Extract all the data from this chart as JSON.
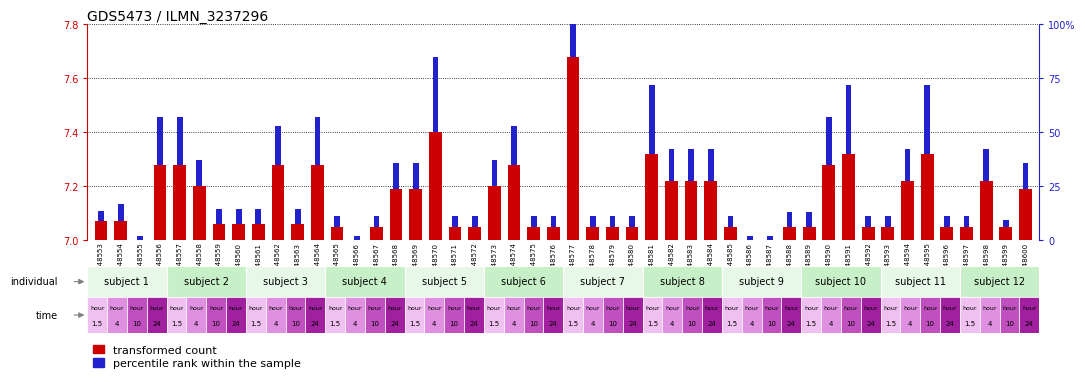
{
  "title": "GDS5473 / ILMN_3237296",
  "gsm_ids": [
    "GSM1348553",
    "GSM1348554",
    "GSM1348555",
    "GSM1348556",
    "GSM1348557",
    "GSM1348558",
    "GSM1348559",
    "GSM1348560",
    "GSM1348561",
    "GSM1348562",
    "GSM1348563",
    "GSM1348564",
    "GSM1348565",
    "GSM1348566",
    "GSM1348567",
    "GSM1348568",
    "GSM1348569",
    "GSM1348570",
    "GSM1348571",
    "GSM1348572",
    "GSM1348573",
    "GSM1348574",
    "GSM1348575",
    "GSM1348576",
    "GSM1348577",
    "GSM1348578",
    "GSM1348579",
    "GSM1348580",
    "GSM1348581",
    "GSM1348582",
    "GSM1348583",
    "GSM1348584",
    "GSM1348585",
    "GSM1348586",
    "GSM1348587",
    "GSM1348588",
    "GSM1348589",
    "GSM1348590",
    "GSM1348591",
    "GSM1348592",
    "GSM1348593",
    "GSM1348594",
    "GSM1348595",
    "GSM1348596",
    "GSM1348597",
    "GSM1348598",
    "GSM1348599",
    "GSM1348600"
  ],
  "red_values": [
    7.07,
    7.07,
    7.0,
    7.28,
    7.28,
    7.2,
    7.06,
    7.06,
    7.06,
    7.28,
    7.06,
    7.28,
    7.05,
    7.0,
    7.05,
    7.19,
    7.19,
    7.4,
    7.05,
    7.05,
    7.2,
    7.28,
    7.05,
    7.05,
    7.68,
    7.05,
    7.05,
    7.05,
    7.32,
    7.22,
    7.22,
    7.22,
    7.05,
    7.0,
    7.0,
    7.05,
    7.05,
    7.28,
    7.32,
    7.05,
    7.05,
    7.22,
    7.32,
    7.05,
    7.05,
    7.22,
    7.05,
    7.19
  ],
  "blue_values": [
    5,
    8,
    2,
    22,
    22,
    12,
    7,
    7,
    7,
    18,
    7,
    22,
    5,
    2,
    5,
    12,
    12,
    35,
    5,
    5,
    12,
    18,
    5,
    5,
    78,
    5,
    5,
    5,
    32,
    15,
    15,
    15,
    5,
    2,
    2,
    7,
    7,
    22,
    32,
    5,
    5,
    15,
    32,
    5,
    5,
    15,
    3,
    12
  ],
  "ylim_left": [
    7.0,
    7.8
  ],
  "ylim_right": [
    0,
    100
  ],
  "left_yticks": [
    7.0,
    7.2,
    7.4,
    7.6,
    7.8
  ],
  "right_yticks": [
    0,
    25,
    50,
    75,
    100
  ],
  "right_yticklabels": [
    "0",
    "25",
    "50",
    "75",
    "100%"
  ],
  "subjects": [
    {
      "label": "subject 1",
      "start": 0,
      "end": 4
    },
    {
      "label": "subject 2",
      "start": 4,
      "end": 8
    },
    {
      "label": "subject 3",
      "start": 8,
      "end": 12
    },
    {
      "label": "subject 4",
      "start": 12,
      "end": 16
    },
    {
      "label": "subject 5",
      "start": 16,
      "end": 20
    },
    {
      "label": "subject 6",
      "start": 20,
      "end": 24
    },
    {
      "label": "subject 7",
      "start": 24,
      "end": 28
    },
    {
      "label": "subject 8",
      "start": 28,
      "end": 32
    },
    {
      "label": "subject 9",
      "start": 32,
      "end": 36
    },
    {
      "label": "subject 10",
      "start": 36,
      "end": 40
    },
    {
      "label": "subject 11",
      "start": 40,
      "end": 44
    },
    {
      "label": "subject 12",
      "start": 44,
      "end": 48
    }
  ],
  "subject_colors": [
    "#e8f8e8",
    "#c8f0c8"
  ],
  "time_colors": [
    "#f0c0f0",
    "#e090e0",
    "#c050c0",
    "#a020a0"
  ],
  "bar_color_red": "#cc0000",
  "bar_color_blue": "#2222cc",
  "left_axis_color": "#cc0000",
  "right_axis_color": "#2222cc",
  "title_fontsize": 10,
  "tick_fontsize": 7,
  "gsm_fontsize": 5.0,
  "legend_fontsize": 8,
  "bar_width": 0.65
}
